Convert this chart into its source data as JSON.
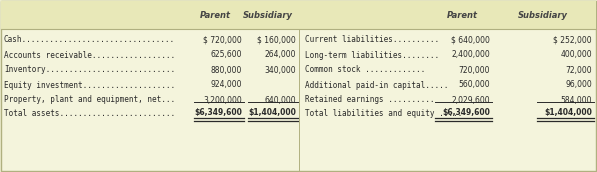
{
  "bg_color": "#efefd0",
  "header_bg": "#e8e8b8",
  "table_bg": "#f4f4dc",
  "border_color": "#b0b080",
  "text_color": "#2a2a2a",
  "header_color": "#444444",
  "left_rows": [
    [
      "Cash.................................",
      "$ 720,000",
      "$ 160,000"
    ],
    [
      "Accounts receivable..................",
      "625,600",
      "264,000"
    ],
    [
      "Inventory............................",
      "880,000",
      "340,000"
    ],
    [
      "Equity investment....................",
      "924,000",
      ""
    ],
    [
      "Property, plant and equipment, net...",
      "3,200,000",
      "640,000"
    ]
  ],
  "left_total": [
    "Total assets.........................",
    "$6,349,600",
    "$1,404,000"
  ],
  "right_rows": [
    [
      "Current liabilities..........",
      "$ 640,000",
      "$ 252,000"
    ],
    [
      "Long-term liabilities........",
      "2,400,000",
      "400,000"
    ],
    [
      "Common stock .............",
      "720,000",
      "72,000"
    ],
    [
      "Additional paid-in capital.....",
      "560,000",
      "96,000"
    ],
    [
      "Retained earnings ..........",
      "2,029,600",
      "584,000"
    ]
  ],
  "right_total": [
    "Total liabilities and equity .....",
    "$6,349,600",
    "$1,404,000"
  ],
  "col_headers": [
    "Parent",
    "Subsidiary"
  ]
}
